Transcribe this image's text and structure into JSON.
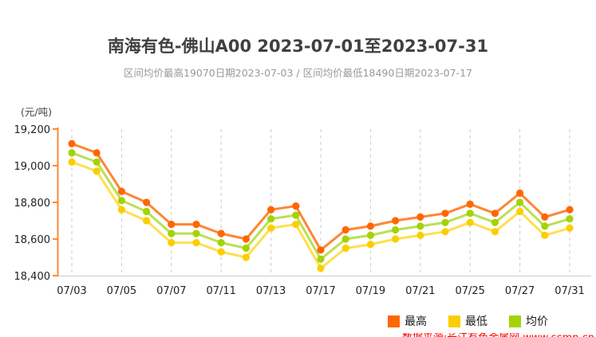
{
  "title": "南海有色-佛山A00 2023-07-01至2023-07-31",
  "subtitle": "区间均价最高19070日期2023-07-03 / 区间均价最低18490日期2023-07-17",
  "watermark": "数据来源:长江有色金属网 www.ccmn.cn",
  "legend": {
    "high_label": "最高",
    "low_label": "最低",
    "avg_label": "均价"
  },
  "chart_data": {
    "type": "line",
    "title": "南海有色-佛山A00 2023-07-01至2023-07-31",
    "subtitle": "区间均价最高19070日期2023-07-03 / 区间均价最低18490日期2023-07-17",
    "ylabel": "(元/吨)",
    "ylim": [
      18400,
      19200
    ],
    "y_tick_step": 200,
    "y_tick_labels": [
      "18,400",
      "18,600",
      "18,800",
      "19,000",
      "19,200"
    ],
    "x": [
      "07/03",
      "07/04",
      "07/05",
      "07/06",
      "07/07",
      "07/10",
      "07/11",
      "07/12",
      "07/13",
      "07/14",
      "07/17",
      "07/18",
      "07/19",
      "07/20",
      "07/21",
      "07/24",
      "07/25",
      "07/26",
      "07/27",
      "07/28",
      "07/31"
    ],
    "x_tick_every": 2,
    "x_tick_labels": [
      "07/03",
      "07/05",
      "07/07",
      "07/11",
      "07/13",
      "07/17",
      "07/19",
      "07/21",
      "07/25",
      "07/27",
      "07/31"
    ],
    "grid": "vertical-dashed",
    "grid_color": "#CCCCCC",
    "axis_color": "#FF8833",
    "legend_position": "bottom-right",
    "series": [
      {
        "name": "最高",
        "key": "high",
        "color": "#FF6600",
        "line_color": "#FF8534",
        "values": [
          19120,
          19070,
          18860,
          18800,
          18680,
          18680,
          18630,
          18600,
          18760,
          18780,
          18540,
          18650,
          18670,
          18700,
          18720,
          18740,
          18790,
          18740,
          18850,
          18720,
          18760
        ]
      },
      {
        "name": "最低",
        "key": "low",
        "color": "#FBCE00",
        "line_color": "#FFDF4F",
        "values": [
          19020,
          18970,
          18760,
          18700,
          18580,
          18580,
          18530,
          18500,
          18660,
          18680,
          18440,
          18550,
          18570,
          18600,
          18620,
          18640,
          18690,
          18640,
          18750,
          18620,
          18660
        ]
      },
      {
        "name": "均价",
        "key": "avg",
        "color": "#A3D305",
        "line_color": "#BCDF52",
        "values": [
          19070,
          19020,
          18810,
          18750,
          18630,
          18630,
          18580,
          18550,
          18710,
          18730,
          18490,
          18600,
          18620,
          18650,
          18670,
          18690,
          18740,
          18690,
          18800,
          18670,
          18710
        ]
      }
    ]
  }
}
